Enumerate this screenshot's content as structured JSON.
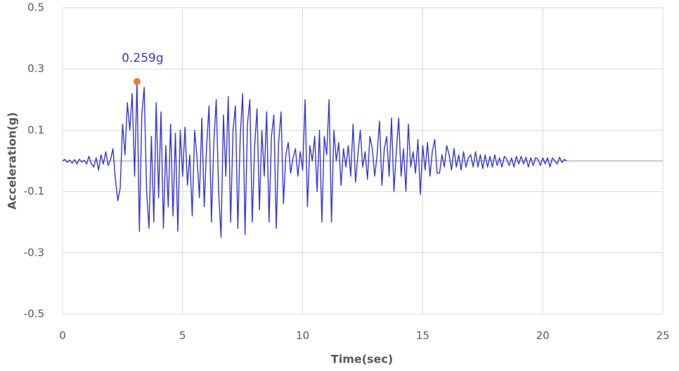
{
  "chart_data": {
    "type": "line",
    "x_label": "Time(sec)",
    "y_label": "Acceleration(g)",
    "xlim": [
      0,
      25
    ],
    "xticks": [
      0,
      5,
      10,
      15,
      20,
      25
    ],
    "ylim": [
      -0.5,
      0.5
    ],
    "yticks": [
      -0.5,
      -0.3,
      -0.1,
      0.1,
      0.3,
      0.5
    ],
    "grid": true,
    "peak": {
      "x": 3.1,
      "y": 0.259,
      "label": "0.259g",
      "color": "#ed7d31"
    },
    "series": [
      {
        "color": "#3535d8",
        "x": [
          0,
          0.1,
          0.2,
          0.3,
          0.4,
          0.5,
          0.6,
          0.7,
          0.8,
          0.9,
          1.0,
          1.1,
          1.2,
          1.3,
          1.4,
          1.5,
          1.6,
          1.7,
          1.8,
          1.9,
          2.0,
          2.1,
          2.2,
          2.3,
          2.4,
          2.5,
          2.6,
          2.7,
          2.8,
          2.9,
          3.0,
          3.1,
          3.2,
          3.3,
          3.4,
          3.5,
          3.6,
          3.7,
          3.8,
          3.9,
          4.0,
          4.1,
          4.2,
          4.3,
          4.4,
          4.5,
          4.6,
          4.7,
          4.8,
          4.9,
          5.0,
          5.1,
          5.2,
          5.3,
          5.4,
          5.5,
          5.6,
          5.7,
          5.8,
          5.9,
          6.0,
          6.1,
          6.2,
          6.3,
          6.4,
          6.5,
          6.6,
          6.7,
          6.8,
          6.9,
          7.0,
          7.1,
          7.2,
          7.3,
          7.4,
          7.5,
          7.6,
          7.7,
          7.8,
          7.9,
          8.0,
          8.1,
          8.2,
          8.3,
          8.4,
          8.5,
          8.6,
          8.7,
          8.8,
          8.9,
          9.0,
          9.1,
          9.2,
          9.3,
          9.4,
          9.5,
          9.6,
          9.7,
          9.8,
          9.9,
          10.0,
          10.1,
          10.2,
          10.3,
          10.4,
          10.5,
          10.6,
          10.7,
          10.8,
          10.9,
          11.0,
          11.1,
          11.2,
          11.3,
          11.4,
          11.5,
          11.6,
          11.7,
          11.8,
          11.9,
          12.0,
          12.1,
          12.2,
          12.3,
          12.4,
          12.5,
          12.6,
          12.7,
          12.8,
          12.9,
          13.0,
          13.1,
          13.2,
          13.3,
          13.4,
          13.5,
          13.6,
          13.7,
          13.8,
          13.9,
          14.0,
          14.1,
          14.2,
          14.3,
          14.4,
          14.5,
          14.6,
          14.7,
          14.8,
          14.9,
          15.0,
          15.1,
          15.2,
          15.3,
          15.4,
          15.5,
          15.6,
          15.7,
          15.8,
          15.9,
          16.0,
          16.1,
          16.2,
          16.3,
          16.4,
          16.5,
          16.6,
          16.7,
          16.8,
          16.9,
          17.0,
          17.1,
          17.2,
          17.3,
          17.4,
          17.5,
          17.6,
          17.7,
          17.8,
          17.9,
          18.0,
          18.1,
          18.2,
          18.3,
          18.4,
          18.5,
          18.6,
          18.7,
          18.8,
          18.9,
          19.0,
          19.1,
          19.2,
          19.3,
          19.4,
          19.5,
          19.6,
          19.7,
          19.8,
          19.9,
          20.0,
          20.1,
          20.2,
          20.3,
          20.4,
          20.5,
          20.6,
          20.7,
          20.8,
          20.9,
          21.0
        ],
        "values": [
          0,
          0.005,
          -0.005,
          0.003,
          -0.008,
          0.004,
          -0.01,
          0.006,
          -0.004,
          0.002,
          -0.01,
          0.015,
          -0.01,
          -0.02,
          0.01,
          -0.03,
          0.02,
          -0.01,
          0.03,
          -0.015,
          0.005,
          0.04,
          -0.06,
          -0.13,
          -0.09,
          0.12,
          0.02,
          0.19,
          0.1,
          0.22,
          -0.05,
          0.259,
          -0.23,
          0.15,
          0.24,
          -0.1,
          -0.22,
          0.08,
          -0.2,
          0.19,
          -0.12,
          0.16,
          -0.22,
          0.05,
          -0.15,
          0.12,
          -0.18,
          0.09,
          -0.23,
          0.1,
          -0.05,
          0.11,
          -0.08,
          0.02,
          -0.18,
          0.1,
          0.01,
          -0.12,
          0.14,
          -0.15,
          0.05,
          0.18,
          -0.2,
          0.06,
          0.2,
          -0.1,
          -0.25,
          0.15,
          -0.05,
          0.21,
          -0.2,
          0.1,
          0.18,
          -0.22,
          0.08,
          0.22,
          -0.24,
          0.12,
          0.2,
          -0.2,
          0.05,
          0.17,
          -0.16,
          0.1,
          -0.05,
          0.16,
          -0.2,
          0.08,
          0.15,
          -0.22,
          0.06,
          0.16,
          -0.14,
          0.02,
          0.06,
          -0.04,
          0.01,
          0.04,
          -0.05,
          0.03,
          -0.03,
          0.2,
          -0.15,
          0.05,
          0.0,
          0.08,
          -0.1,
          0.1,
          -0.2,
          0.08,
          0.02,
          0.2,
          -0.2,
          0.1,
          0.0,
          0.06,
          -0.08,
          0.04,
          -0.02,
          0.05,
          -0.05,
          0.12,
          -0.07,
          0.02,
          0.1,
          -0.02,
          0.03,
          -0.06,
          0.08,
          0.04,
          -0.05,
          0.02,
          0.13,
          -0.08,
          0.04,
          0.08,
          -0.05,
          0.14,
          -0.1,
          0.03,
          0.14,
          -0.05,
          0.04,
          -0.1,
          0.12,
          -0.02,
          0.03,
          -0.04,
          0.07,
          -0.11,
          0.05,
          -0.03,
          0.06,
          -0.05,
          0.03,
          0.07,
          -0.04,
          -0.04,
          0.02,
          -0.02,
          0.05,
          0.02,
          -0.03,
          0.04,
          -0.02,
          0.02,
          -0.03,
          0.03,
          -0.02,
          0.01,
          0.02,
          -0.02,
          0.03,
          -0.02,
          0.02,
          -0.025,
          0.02,
          -0.02,
          0.015,
          -0.02,
          0.02,
          -0.015,
          0.01,
          -0.02,
          0.015,
          0.005,
          -0.015,
          0.01,
          -0.02,
          0.015,
          -0.01,
          0.015,
          -0.01,
          0.012,
          -0.02,
          0.01,
          -0.015,
          0.01,
          0.005,
          -0.015,
          0.01,
          -0.01,
          0.01,
          -0.02,
          0.01,
          0.0,
          -0.01,
          0.012,
          -0.005,
          0.005,
          0.0
        ]
      }
    ]
  }
}
